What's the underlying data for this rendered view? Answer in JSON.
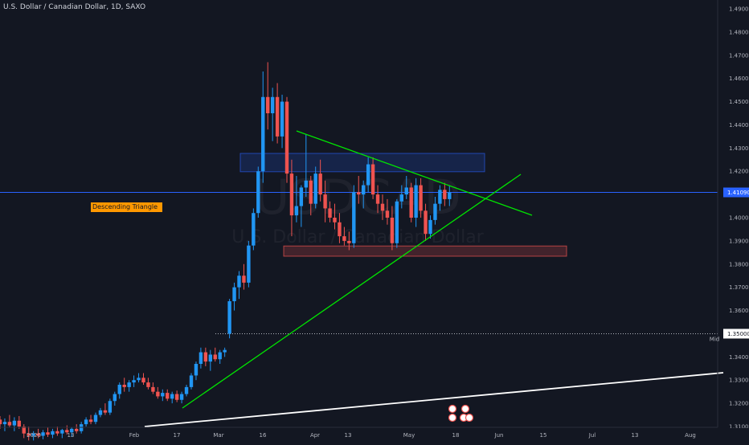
{
  "header": {
    "symbol_line": "U.S. Dollar / Canadian Dollar, 1D, SAXO"
  },
  "watermark": {
    "ticker": "USDCAD",
    "name": "U.S. Dollar / Canadian Dollar"
  },
  "annotation": {
    "label": "Descending Triangle"
  },
  "colors": {
    "background": "#131722",
    "up_candle": "#2196f3",
    "down_candle": "#ef5350",
    "trendline": "#00e600",
    "long_trendline": "#ffffff",
    "price_line": "#2962ff",
    "label_bg": "#ff9800"
  },
  "price_axis": {
    "labels": [
      "1.49000",
      "1.48000",
      "1.47000",
      "1.46000",
      "1.45000",
      "1.44000",
      "1.43000",
      "1.42000",
      "1.40000",
      "1.39000",
      "1.38000",
      "1.37000",
      "1.36000",
      "1.34000",
      "1.33000",
      "1.32000",
      "1.31000"
    ],
    "current_price": "1.41090",
    "mid_price": "1.35000",
    "mid_label": "Mid"
  },
  "time_axis": {
    "labels": [
      "2020",
      "13",
      "Feb",
      "17",
      "Mar",
      "16",
      "Apr",
      "13",
      "May",
      "18",
      "Jun",
      "15",
      "Jul",
      "13",
      "Aug"
    ]
  },
  "event_icons": [
    "earnings-icon",
    "dividend-icon",
    "split-icon"
  ],
  "chart_data": {
    "type": "candlestick",
    "title": "U.S. Dollar / Canadian Dollar, 1D, SAXO",
    "xlabel": "",
    "ylabel": "",
    "ylim": [
      1.306,
      1.495
    ],
    "grid": false,
    "current_price": 1.4109,
    "candles": [
      {
        "o": 1.313,
        "h": 1.3145,
        "l": 1.309,
        "c": 1.311
      },
      {
        "o": 1.311,
        "h": 1.3135,
        "l": 1.308,
        "c": 1.312
      },
      {
        "o": 1.312,
        "h": 1.315,
        "l": 1.3095,
        "c": 1.3105
      },
      {
        "o": 1.3105,
        "h": 1.314,
        "l": 1.308,
        "c": 1.3125
      },
      {
        "o": 1.3125,
        "h": 1.3145,
        "l": 1.309,
        "c": 1.31
      },
      {
        "o": 1.31,
        "h": 1.311,
        "l": 1.305,
        "c": 1.307
      },
      {
        "o": 1.307,
        "h": 1.31,
        "l": 1.304,
        "c": 1.306
      },
      {
        "o": 1.306,
        "h": 1.308,
        "l": 1.304,
        "c": 1.307
      },
      {
        "o": 1.307,
        "h": 1.309,
        "l": 1.305,
        "c": 1.306
      },
      {
        "o": 1.306,
        "h": 1.3085,
        "l": 1.3045,
        "c": 1.3075
      },
      {
        "o": 1.3075,
        "h": 1.3095,
        "l": 1.3055,
        "c": 1.3065
      },
      {
        "o": 1.3065,
        "h": 1.309,
        "l": 1.305,
        "c": 1.308
      },
      {
        "o": 1.308,
        "h": 1.31,
        "l": 1.306,
        "c": 1.307
      },
      {
        "o": 1.307,
        "h": 1.309,
        "l": 1.305,
        "c": 1.3085
      },
      {
        "o": 1.3085,
        "h": 1.3105,
        "l": 1.3065,
        "c": 1.3075
      },
      {
        "o": 1.3075,
        "h": 1.3095,
        "l": 1.3055,
        "c": 1.309
      },
      {
        "o": 1.309,
        "h": 1.311,
        "l": 1.307,
        "c": 1.308
      },
      {
        "o": 1.308,
        "h": 1.312,
        "l": 1.307,
        "c": 1.311
      },
      {
        "o": 1.311,
        "h": 1.314,
        "l": 1.31,
        "c": 1.313
      },
      {
        "o": 1.313,
        "h": 1.315,
        "l": 1.311,
        "c": 1.312
      },
      {
        "o": 1.312,
        "h": 1.316,
        "l": 1.311,
        "c": 1.315
      },
      {
        "o": 1.315,
        "h": 1.318,
        "l": 1.314,
        "c": 1.317
      },
      {
        "o": 1.317,
        "h": 1.32,
        "l": 1.315,
        "c": 1.316
      },
      {
        "o": 1.316,
        "h": 1.322,
        "l": 1.315,
        "c": 1.321
      },
      {
        "o": 1.321,
        "h": 1.325,
        "l": 1.319,
        "c": 1.324
      },
      {
        "o": 1.324,
        "h": 1.329,
        "l": 1.322,
        "c": 1.328
      },
      {
        "o": 1.328,
        "h": 1.331,
        "l": 1.325,
        "c": 1.327
      },
      {
        "o": 1.327,
        "h": 1.33,
        "l": 1.325,
        "c": 1.329
      },
      {
        "o": 1.329,
        "h": 1.332,
        "l": 1.327,
        "c": 1.33
      },
      {
        "o": 1.33,
        "h": 1.333,
        "l": 1.329,
        "c": 1.331
      },
      {
        "o": 1.331,
        "h": 1.333,
        "l": 1.328,
        "c": 1.329
      },
      {
        "o": 1.329,
        "h": 1.331,
        "l": 1.326,
        "c": 1.327
      },
      {
        "o": 1.327,
        "h": 1.329,
        "l": 1.324,
        "c": 1.325
      },
      {
        "o": 1.325,
        "h": 1.327,
        "l": 1.322,
        "c": 1.323
      },
      {
        "o": 1.323,
        "h": 1.326,
        "l": 1.321,
        "c": 1.3245
      },
      {
        "o": 1.3245,
        "h": 1.326,
        "l": 1.321,
        "c": 1.322
      },
      {
        "o": 1.322,
        "h": 1.325,
        "l": 1.32,
        "c": 1.324
      },
      {
        "o": 1.324,
        "h": 1.3255,
        "l": 1.3205,
        "c": 1.3215
      },
      {
        "o": 1.3215,
        "h": 1.325,
        "l": 1.32,
        "c": 1.324
      },
      {
        "o": 1.324,
        "h": 1.328,
        "l": 1.323,
        "c": 1.327
      },
      {
        "o": 1.327,
        "h": 1.333,
        "l": 1.326,
        "c": 1.332
      },
      {
        "o": 1.332,
        "h": 1.338,
        "l": 1.33,
        "c": 1.337
      },
      {
        "o": 1.337,
        "h": 1.344,
        "l": 1.335,
        "c": 1.342
      },
      {
        "o": 1.342,
        "h": 1.344,
        "l": 1.336,
        "c": 1.338
      },
      {
        "o": 1.338,
        "h": 1.343,
        "l": 1.334,
        "c": 1.341
      },
      {
        "o": 1.341,
        "h": 1.344,
        "l": 1.338,
        "c": 1.339
      },
      {
        "o": 1.339,
        "h": 1.343,
        "l": 1.337,
        "c": 1.342
      },
      {
        "o": 1.342,
        "h": 1.344,
        "l": 1.34,
        "c": 1.343
      },
      {
        "o": 1.35,
        "h": 1.365,
        "l": 1.348,
        "c": 1.364
      },
      {
        "o": 1.364,
        "h": 1.372,
        "l": 1.36,
        "c": 1.37
      },
      {
        "o": 1.37,
        "h": 1.377,
        "l": 1.365,
        "c": 1.375
      },
      {
        "o": 1.375,
        "h": 1.38,
        "l": 1.369,
        "c": 1.372
      },
      {
        "o": 1.372,
        "h": 1.39,
        "l": 1.37,
        "c": 1.388
      },
      {
        "o": 1.388,
        "h": 1.404,
        "l": 1.386,
        "c": 1.402
      },
      {
        "o": 1.402,
        "h": 1.422,
        "l": 1.4,
        "c": 1.42
      },
      {
        "o": 1.42,
        "h": 1.463,
        "l": 1.415,
        "c": 1.452
      },
      {
        "o": 1.452,
        "h": 1.467,
        "l": 1.438,
        "c": 1.445
      },
      {
        "o": 1.445,
        "h": 1.456,
        "l": 1.433,
        "c": 1.452
      },
      {
        "o": 1.452,
        "h": 1.458,
        "l": 1.432,
        "c": 1.435
      },
      {
        "o": 1.435,
        "h": 1.453,
        "l": 1.43,
        "c": 1.45
      },
      {
        "o": 1.45,
        "h": 1.452,
        "l": 1.415,
        "c": 1.419
      },
      {
        "o": 1.419,
        "h": 1.425,
        "l": 1.392,
        "c": 1.401
      },
      {
        "o": 1.401,
        "h": 1.418,
        "l": 1.398,
        "c": 1.405
      },
      {
        "o": 1.405,
        "h": 1.414,
        "l": 1.396,
        "c": 1.413
      },
      {
        "o": 1.413,
        "h": 1.436,
        "l": 1.409,
        "c": 1.416
      },
      {
        "o": 1.416,
        "h": 1.418,
        "l": 1.401,
        "c": 1.406
      },
      {
        "o": 1.406,
        "h": 1.422,
        "l": 1.404,
        "c": 1.419
      },
      {
        "o": 1.419,
        "h": 1.425,
        "l": 1.407,
        "c": 1.41
      },
      {
        "o": 1.41,
        "h": 1.416,
        "l": 1.398,
        "c": 1.404
      },
      {
        "o": 1.404,
        "h": 1.407,
        "l": 1.398,
        "c": 1.4
      },
      {
        "o": 1.4,
        "h": 1.406,
        "l": 1.395,
        "c": 1.398
      },
      {
        "o": 1.398,
        "h": 1.402,
        "l": 1.389,
        "c": 1.392
      },
      {
        "o": 1.392,
        "h": 1.396,
        "l": 1.388,
        "c": 1.39
      },
      {
        "o": 1.39,
        "h": 1.394,
        "l": 1.386,
        "c": 1.389
      },
      {
        "o": 1.389,
        "h": 1.414,
        "l": 1.387,
        "c": 1.411
      },
      {
        "o": 1.411,
        "h": 1.418,
        "l": 1.406,
        "c": 1.41
      },
      {
        "o": 1.41,
        "h": 1.416,
        "l": 1.404,
        "c": 1.414
      },
      {
        "o": 1.414,
        "h": 1.426,
        "l": 1.411,
        "c": 1.423
      },
      {
        "o": 1.423,
        "h": 1.426,
        "l": 1.408,
        "c": 1.41
      },
      {
        "o": 1.41,
        "h": 1.414,
        "l": 1.402,
        "c": 1.406
      },
      {
        "o": 1.406,
        "h": 1.41,
        "l": 1.399,
        "c": 1.403
      },
      {
        "o": 1.403,
        "h": 1.408,
        "l": 1.397,
        "c": 1.4
      },
      {
        "o": 1.4,
        "h": 1.405,
        "l": 1.386,
        "c": 1.389
      },
      {
        "o": 1.389,
        "h": 1.408,
        "l": 1.387,
        "c": 1.407
      },
      {
        "o": 1.407,
        "h": 1.414,
        "l": 1.404,
        "c": 1.41
      },
      {
        "o": 1.41,
        "h": 1.418,
        "l": 1.408,
        "c": 1.413
      },
      {
        "o": 1.413,
        "h": 1.415,
        "l": 1.398,
        "c": 1.4
      },
      {
        "o": 1.4,
        "h": 1.417,
        "l": 1.396,
        "c": 1.414
      },
      {
        "o": 1.414,
        "h": 1.417,
        "l": 1.4,
        "c": 1.403
      },
      {
        "o": 1.403,
        "h": 1.406,
        "l": 1.39,
        "c": 1.393
      },
      {
        "o": 1.393,
        "h": 1.401,
        "l": 1.391,
        "c": 1.399
      },
      {
        "o": 1.399,
        "h": 1.409,
        "l": 1.397,
        "c": 1.406
      },
      {
        "o": 1.406,
        "h": 1.414,
        "l": 1.403,
        "c": 1.412
      },
      {
        "o": 1.412,
        "h": 1.415,
        "l": 1.405,
        "c": 1.408
      },
      {
        "o": 1.408,
        "h": 1.414,
        "l": 1.405,
        "c": 1.4109
      }
    ]
  }
}
